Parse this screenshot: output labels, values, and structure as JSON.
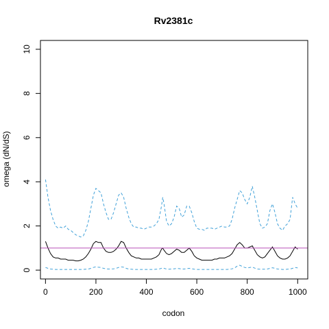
{
  "chart_data": {
    "type": "line",
    "title": "Rv2381c",
    "xlabel": "codon",
    "ylabel": "omega (dN/dS)",
    "xlim": [
      -20,
      1040
    ],
    "ylim": [
      -0.4,
      10.4
    ],
    "xticks": [
      0,
      200,
      400,
      600,
      800,
      1000
    ],
    "yticks": [
      0,
      2,
      4,
      6,
      8,
      10
    ],
    "grid": false,
    "reference_line": {
      "y": 1,
      "color": "#b84fb8"
    },
    "series": [
      {
        "style": "dashed",
        "color": "#3fa0d8",
        "x": [
          0,
          10,
          20,
          30,
          40,
          50,
          60,
          70,
          80,
          90,
          100,
          110,
          120,
          130,
          140,
          150,
          160,
          170,
          180,
          190,
          200,
          210,
          220,
          230,
          240,
          250,
          260,
          270,
          280,
          290,
          300,
          310,
          320,
          330,
          340,
          350,
          360,
          370,
          380,
          390,
          400,
          410,
          420,
          430,
          440,
          450,
          460,
          465,
          470,
          480,
          490,
          500,
          510,
          520,
          530,
          540,
          550,
          560,
          570,
          580,
          590,
          600,
          610,
          620,
          630,
          640,
          650,
          660,
          670,
          680,
          690,
          700,
          710,
          720,
          730,
          740,
          750,
          760,
          770,
          780,
          790,
          800,
          810,
          820,
          830,
          840,
          850,
          860,
          870,
          880,
          890,
          900,
          910,
          920,
          930,
          940,
          950,
          960,
          970,
          980,
          990,
          1000
        ],
        "values": [
          4.1,
          3.3,
          2.7,
          2.3,
          2.0,
          1.9,
          1.95,
          1.9,
          2.0,
          1.85,
          1.8,
          1.7,
          1.6,
          1.55,
          1.5,
          1.55,
          1.8,
          2.2,
          2.8,
          3.4,
          3.7,
          3.6,
          3.5,
          3.0,
          2.6,
          2.3,
          2.3,
          2.6,
          3.0,
          3.4,
          3.5,
          3.3,
          2.8,
          2.4,
          2.1,
          1.95,
          1.95,
          1.9,
          1.9,
          1.85,
          1.9,
          1.95,
          1.95,
          2.0,
          2.1,
          2.3,
          2.9,
          3.3,
          3.0,
          2.2,
          2.0,
          2.1,
          2.4,
          2.9,
          2.8,
          2.4,
          2.5,
          2.9,
          2.9,
          2.6,
          2.2,
          1.9,
          1.85,
          1.85,
          1.8,
          1.9,
          1.9,
          1.9,
          1.85,
          1.9,
          1.95,
          2.0,
          1.95,
          1.95,
          2.0,
          2.3,
          2.8,
          3.2,
          3.6,
          3.5,
          3.2,
          3.0,
          3.3,
          3.8,
          3.3,
          2.7,
          2.1,
          1.9,
          1.95,
          2.1,
          2.7,
          3.0,
          2.6,
          2.1,
          1.9,
          1.8,
          2.0,
          2.1,
          2.3,
          3.3,
          3.0,
          2.8
        ]
      },
      {
        "style": "solid",
        "color": "#000000",
        "x": [
          0,
          10,
          20,
          30,
          40,
          50,
          60,
          70,
          80,
          90,
          100,
          110,
          120,
          130,
          140,
          150,
          160,
          170,
          180,
          190,
          200,
          210,
          220,
          230,
          240,
          250,
          260,
          270,
          280,
          290,
          300,
          310,
          320,
          330,
          340,
          350,
          360,
          370,
          380,
          390,
          400,
          410,
          420,
          430,
          440,
          450,
          460,
          465,
          470,
          480,
          490,
          500,
          510,
          520,
          530,
          540,
          550,
          560,
          570,
          580,
          590,
          600,
          610,
          620,
          630,
          640,
          650,
          660,
          670,
          680,
          690,
          700,
          710,
          720,
          730,
          740,
          750,
          760,
          770,
          780,
          790,
          800,
          810,
          820,
          830,
          840,
          850,
          860,
          870,
          880,
          890,
          900,
          910,
          920,
          930,
          940,
          950,
          960,
          970,
          980,
          990,
          1000
        ],
        "values": [
          1.3,
          1.0,
          0.75,
          0.6,
          0.55,
          0.55,
          0.5,
          0.5,
          0.5,
          0.45,
          0.45,
          0.45,
          0.42,
          0.42,
          0.45,
          0.5,
          0.6,
          0.75,
          0.95,
          1.2,
          1.3,
          1.25,
          1.25,
          1.0,
          0.85,
          0.8,
          0.8,
          0.85,
          0.95,
          1.1,
          1.3,
          1.25,
          1.0,
          0.8,
          0.65,
          0.6,
          0.55,
          0.55,
          0.5,
          0.5,
          0.5,
          0.5,
          0.5,
          0.55,
          0.6,
          0.7,
          0.95,
          1.0,
          0.9,
          0.75,
          0.7,
          0.75,
          0.85,
          0.95,
          0.9,
          0.8,
          0.8,
          0.9,
          1.0,
          0.85,
          0.65,
          0.55,
          0.5,
          0.45,
          0.45,
          0.45,
          0.45,
          0.45,
          0.5,
          0.5,
          0.55,
          0.55,
          0.55,
          0.6,
          0.65,
          0.75,
          0.95,
          1.15,
          1.25,
          1.15,
          1.0,
          1.0,
          1.05,
          1.1,
          0.9,
          0.7,
          0.6,
          0.55,
          0.6,
          0.75,
          0.9,
          1.05,
          0.85,
          0.65,
          0.55,
          0.5,
          0.5,
          0.55,
          0.65,
          0.85,
          1.05,
          0.95
        ]
      },
      {
        "style": "dashed",
        "color": "#3fa0d8",
        "x": [
          0,
          10,
          20,
          30,
          40,
          50,
          60,
          70,
          80,
          90,
          100,
          110,
          120,
          130,
          140,
          150,
          160,
          170,
          180,
          190,
          200,
          210,
          220,
          230,
          240,
          250,
          260,
          270,
          280,
          290,
          300,
          310,
          320,
          330,
          340,
          350,
          360,
          370,
          380,
          390,
          400,
          410,
          420,
          430,
          440,
          450,
          460,
          465,
          470,
          480,
          490,
          500,
          510,
          520,
          530,
          540,
          550,
          560,
          570,
          580,
          590,
          600,
          610,
          620,
          630,
          640,
          650,
          660,
          670,
          680,
          690,
          700,
          710,
          720,
          730,
          740,
          750,
          760,
          770,
          780,
          790,
          800,
          810,
          820,
          830,
          840,
          850,
          860,
          870,
          880,
          890,
          900,
          910,
          920,
          930,
          940,
          950,
          960,
          970,
          980,
          990,
          1000
        ],
        "values": [
          0.12,
          0.08,
          0.05,
          0.04,
          0.03,
          0.03,
          0.03,
          0.03,
          0.03,
          0.03,
          0.03,
          0.03,
          0.03,
          0.03,
          0.03,
          0.03,
          0.04,
          0.05,
          0.08,
          0.12,
          0.15,
          0.13,
          0.12,
          0.08,
          0.06,
          0.05,
          0.05,
          0.06,
          0.08,
          0.12,
          0.15,
          0.13,
          0.08,
          0.05,
          0.04,
          0.03,
          0.03,
          0.03,
          0.03,
          0.03,
          0.03,
          0.03,
          0.03,
          0.03,
          0.04,
          0.05,
          0.08,
          0.1,
          0.08,
          0.05,
          0.04,
          0.05,
          0.06,
          0.08,
          0.07,
          0.05,
          0.05,
          0.07,
          0.08,
          0.06,
          0.04,
          0.03,
          0.03,
          0.03,
          0.03,
          0.03,
          0.03,
          0.03,
          0.03,
          0.03,
          0.03,
          0.03,
          0.03,
          0.03,
          0.04,
          0.06,
          0.1,
          0.18,
          0.22,
          0.17,
          0.12,
          0.1,
          0.12,
          0.14,
          0.09,
          0.05,
          0.04,
          0.04,
          0.04,
          0.05,
          0.08,
          0.11,
          0.08,
          0.05,
          0.04,
          0.03,
          0.03,
          0.04,
          0.05,
          0.08,
          0.12,
          0.1
        ]
      }
    ]
  }
}
